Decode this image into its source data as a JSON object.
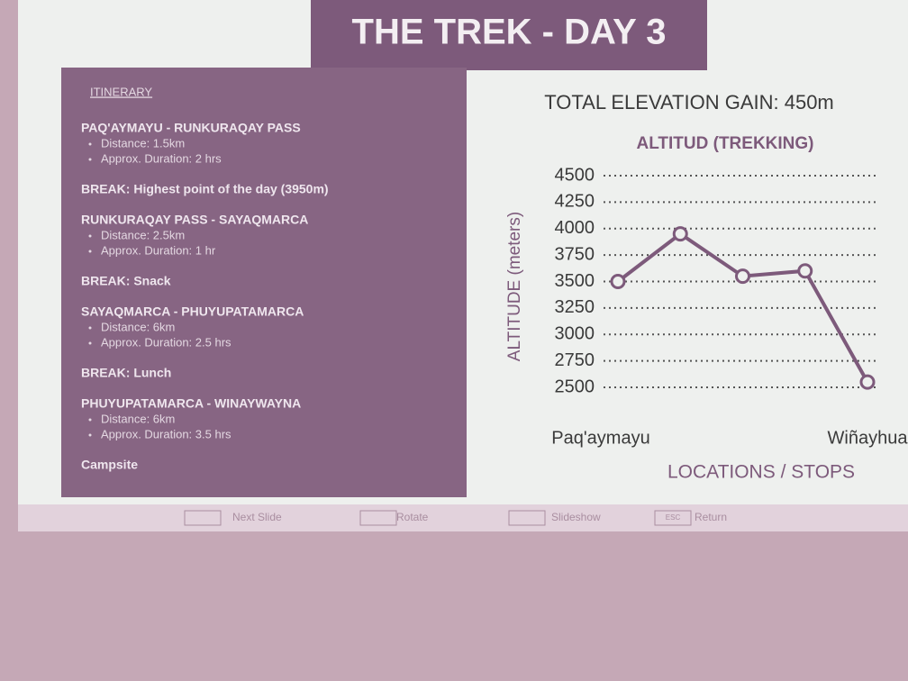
{
  "slide": {
    "title": "THE TREK - DAY 3"
  },
  "itinerary": {
    "heading": "ITINERARY",
    "items": [
      {
        "title": "PAQ'AYMAYU - RUNKURAQAY PASS",
        "details": [
          "Distance: 1.5km",
          "Approx. Duration: 2 hrs"
        ]
      },
      {
        "title": "BREAK: Highest point of the day (3950m)"
      },
      {
        "title": "RUNKURAQAY PASS - SAYAQMARCA",
        "details": [
          "Distance: 2.5km",
          "Approx. Duration: 1 hr"
        ]
      },
      {
        "title": "BREAK: Snack"
      },
      {
        "title": "SAYAQMARCA - PHUYUPATAMARCA",
        "details": [
          "Distance: 6km",
          "Approx. Duration: 2.5 hrs"
        ]
      },
      {
        "title": "BREAK: Lunch"
      },
      {
        "title": "PHUYUPATAMARCA - WINAYWAYNA",
        "details": [
          "Distance: 6km",
          "Approx. Duration: 3.5 hrs"
        ]
      },
      {
        "title": "Campsite"
      }
    ]
  },
  "chart_data": {
    "type": "line",
    "subtitle": "TOTAL ELEVATION GAIN: 450m",
    "title": "ALTITUD (TREKKING)",
    "y_label": "ALTITUDE (meters)",
    "x_label": "LOCATIONS / STOPS",
    "categories": [
      "Paq'aymayu",
      null,
      null,
      null,
      "Wiñayhua"
    ],
    "values": [
      3500,
      3950,
      3550,
      3600,
      2550
    ],
    "color": "#7d5a7b",
    "ylim": [
      2500,
      4500
    ],
    "yticks": [
      2500,
      2750,
      3000,
      3250,
      3500,
      3750,
      4000,
      4250,
      4500
    ],
    "grid": true
  },
  "toolbar": {
    "items": [
      "Next Slide",
      "Rotate",
      "Slideshow",
      "Return"
    ],
    "esc_key": "ESC"
  }
}
